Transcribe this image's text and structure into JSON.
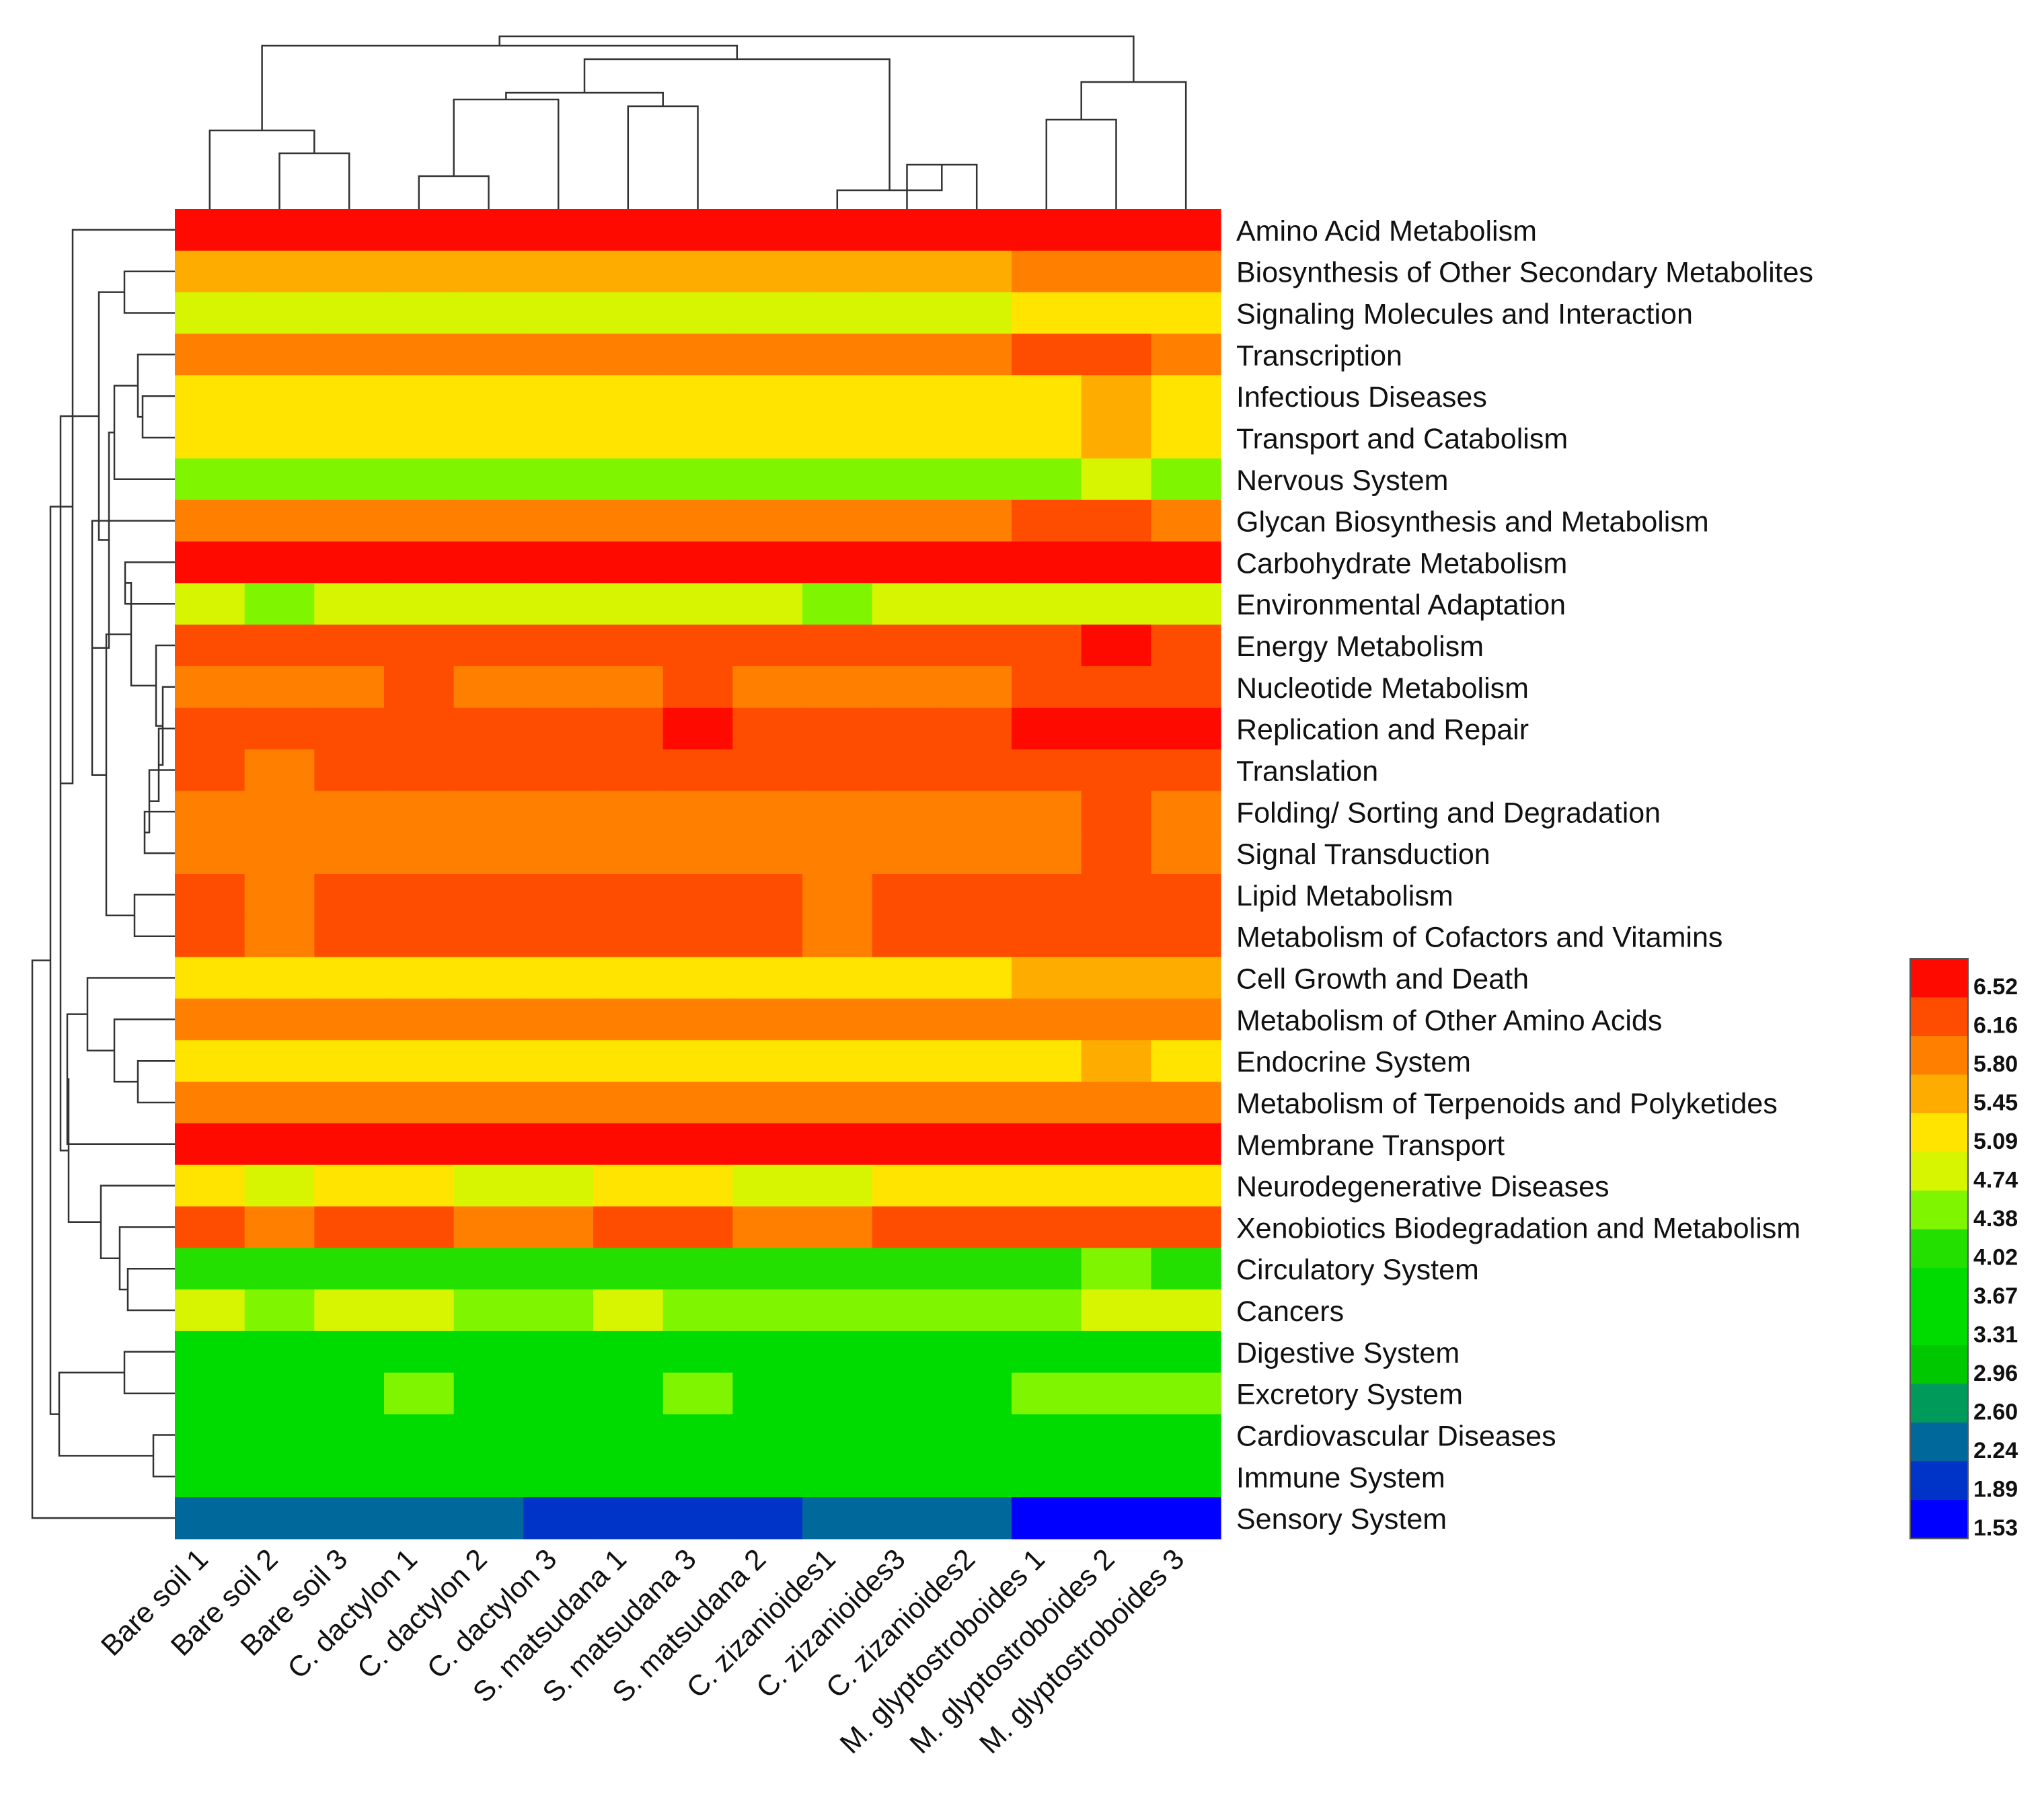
{
  "chart_data": {
    "type": "heatmap",
    "columns": [
      "Bare soil 1",
      "Bare soil 2",
      "Bare soil 3",
      "C. dactylon 1",
      "C. dactylon 2",
      "C. dactylon 3",
      "S. matsudana 1",
      "S. matsudana 3",
      "S. matsudana 2",
      "C. zizanioides1",
      "C. zizanioides3",
      "C. zizanioides2",
      "M. glyptostroboides 1",
      "M. glyptostroboides 2",
      "M. glyptostroboides 3"
    ],
    "rows": [
      "Amino Acid Metabolism",
      "Biosynthesis of Other Secondary Metabolites",
      "Signaling Molecules and Interaction",
      "Transcription",
      "Infectious Diseases",
      "Transport and Catabolism",
      "Nervous System",
      "Glycan Biosynthesis and Metabolism",
      "Carbohydrate Metabolism",
      "Environmental Adaptation",
      "Energy Metabolism",
      "Nucleotide Metabolism",
      "Replication and Repair",
      "Translation",
      "Folding/ Sorting and Degradation",
      "Signal Transduction",
      "Lipid Metabolism",
      "Metabolism of Cofactors and Vitamins",
      "Cell Growth and Death",
      "Metabolism of Other Amino Acids",
      "Endocrine System",
      "Metabolism of Terpenoids and Polyketides",
      "Membrane Transport",
      "Neurodegenerative Diseases",
      "Xenobiotics Biodegradation and Metabolism",
      "Circulatory System",
      "Cancers",
      "Digestive System",
      "Excretory System",
      "Cardiovascular Diseases",
      "Immune System",
      "Sensory System"
    ],
    "values": [
      [
        6.6,
        6.6,
        6.6,
        6.6,
        6.6,
        6.6,
        6.6,
        6.6,
        6.6,
        6.6,
        6.6,
        6.6,
        6.6,
        6.6,
        6.6
      ],
      [
        5.5,
        5.5,
        5.5,
        5.5,
        5.5,
        5.5,
        5.5,
        5.5,
        5.5,
        5.5,
        5.5,
        5.5,
        5.9,
        5.9,
        5.9
      ],
      [
        4.8,
        4.8,
        4.8,
        4.8,
        4.8,
        4.8,
        4.8,
        4.8,
        4.8,
        4.8,
        4.8,
        4.8,
        5.1,
        5.1,
        5.1
      ],
      [
        5.9,
        5.9,
        5.9,
        5.9,
        5.9,
        5.9,
        5.9,
        5.9,
        5.9,
        5.9,
        5.9,
        5.9,
        6.2,
        6.2,
        5.9
      ],
      [
        5.1,
        5.1,
        5.1,
        5.1,
        5.1,
        5.1,
        5.1,
        5.1,
        5.1,
        5.1,
        5.1,
        5.1,
        5.1,
        5.5,
        5.1
      ],
      [
        5.1,
        5.1,
        5.1,
        5.1,
        5.1,
        5.1,
        5.1,
        5.1,
        5.1,
        5.1,
        5.1,
        5.1,
        5.1,
        5.5,
        5.1
      ],
      [
        4.4,
        4.4,
        4.4,
        4.4,
        4.4,
        4.4,
        4.4,
        4.4,
        4.4,
        4.4,
        4.4,
        4.4,
        4.4,
        4.8,
        4.4
      ],
      [
        5.9,
        5.9,
        5.9,
        5.9,
        5.9,
        5.9,
        5.9,
        5.9,
        5.9,
        5.9,
        5.9,
        5.9,
        6.2,
        6.2,
        5.9
      ],
      [
        6.6,
        6.6,
        6.6,
        6.6,
        6.6,
        6.6,
        6.6,
        6.6,
        6.6,
        6.6,
        6.6,
        6.6,
        6.6,
        6.6,
        6.6
      ],
      [
        4.8,
        4.4,
        4.8,
        4.8,
        4.8,
        4.8,
        4.8,
        4.8,
        4.8,
        4.4,
        4.8,
        4.8,
        4.8,
        4.8,
        4.8
      ],
      [
        6.2,
        6.2,
        6.2,
        6.2,
        6.2,
        6.2,
        6.2,
        6.2,
        6.2,
        6.2,
        6.2,
        6.2,
        6.2,
        6.6,
        6.2
      ],
      [
        5.9,
        5.9,
        5.9,
        6.2,
        5.9,
        5.9,
        5.9,
        6.2,
        5.9,
        5.9,
        5.9,
        5.9,
        6.2,
        6.2,
        6.2
      ],
      [
        6.2,
        6.2,
        6.2,
        6.2,
        6.2,
        6.2,
        6.2,
        6.6,
        6.2,
        6.2,
        6.2,
        6.2,
        6.6,
        6.6,
        6.6
      ],
      [
        6.2,
        5.9,
        6.2,
        6.2,
        6.2,
        6.2,
        6.2,
        6.2,
        6.2,
        6.2,
        6.2,
        6.2,
        6.2,
        6.2,
        6.2
      ],
      [
        5.9,
        5.9,
        5.9,
        5.9,
        5.9,
        5.9,
        5.9,
        5.9,
        5.9,
        5.9,
        5.9,
        5.9,
        5.9,
        6.2,
        5.9
      ],
      [
        5.9,
        5.9,
        5.9,
        5.9,
        5.9,
        5.9,
        5.9,
        5.9,
        5.9,
        5.9,
        5.9,
        5.9,
        5.9,
        6.2,
        5.9
      ],
      [
        6.2,
        5.9,
        6.2,
        6.2,
        6.2,
        6.2,
        6.2,
        6.2,
        6.2,
        5.9,
        6.2,
        6.2,
        6.2,
        6.2,
        6.2
      ],
      [
        6.2,
        5.9,
        6.2,
        6.2,
        6.2,
        6.2,
        6.2,
        6.2,
        6.2,
        5.9,
        6.2,
        6.2,
        6.2,
        6.2,
        6.2
      ],
      [
        5.1,
        5.1,
        5.1,
        5.1,
        5.1,
        5.1,
        5.1,
        5.1,
        5.1,
        5.1,
        5.1,
        5.1,
        5.5,
        5.5,
        5.5
      ],
      [
        5.9,
        5.9,
        5.9,
        5.9,
        5.9,
        5.9,
        5.9,
        5.9,
        5.9,
        5.9,
        5.9,
        5.9,
        5.9,
        5.9,
        5.9
      ],
      [
        5.1,
        5.1,
        5.1,
        5.1,
        5.1,
        5.1,
        5.1,
        5.1,
        5.1,
        5.1,
        5.1,
        5.1,
        5.1,
        5.5,
        5.1
      ],
      [
        5.9,
        5.9,
        5.9,
        5.9,
        5.9,
        5.9,
        5.9,
        5.9,
        5.9,
        5.9,
        5.9,
        5.9,
        5.9,
        5.9,
        5.9
      ],
      [
        6.6,
        6.6,
        6.6,
        6.6,
        6.6,
        6.6,
        6.6,
        6.6,
        6.6,
        6.6,
        6.6,
        6.6,
        6.6,
        6.6,
        6.6
      ],
      [
        5.1,
        4.8,
        5.1,
        5.1,
        4.8,
        4.8,
        5.1,
        5.1,
        4.8,
        4.8,
        5.1,
        5.1,
        5.1,
        5.1,
        5.1
      ],
      [
        6.2,
        5.9,
        6.2,
        6.2,
        5.9,
        5.9,
        6.2,
        6.2,
        5.9,
        5.9,
        6.2,
        6.2,
        6.2,
        6.2,
        6.2
      ],
      [
        4.0,
        4.0,
        4.0,
        4.0,
        4.0,
        4.0,
        4.0,
        4.0,
        4.0,
        4.0,
        4.0,
        4.0,
        4.0,
        4.4,
        4.0
      ],
      [
        4.8,
        4.4,
        4.8,
        4.8,
        4.4,
        4.4,
        4.8,
        4.4,
        4.4,
        4.4,
        4.4,
        4.4,
        4.4,
        4.8,
        4.8
      ],
      [
        3.7,
        3.7,
        3.7,
        3.7,
        3.7,
        3.7,
        3.7,
        3.7,
        3.7,
        3.7,
        3.7,
        3.7,
        3.7,
        3.7,
        3.7
      ],
      [
        3.7,
        3.7,
        3.7,
        4.4,
        3.7,
        3.7,
        3.7,
        4.4,
        3.7,
        3.7,
        3.7,
        3.7,
        4.4,
        4.4,
        4.4
      ],
      [
        3.7,
        3.7,
        3.7,
        3.7,
        3.7,
        3.7,
        3.7,
        3.7,
        3.7,
        3.7,
        3.7,
        3.7,
        3.7,
        3.7,
        3.7
      ],
      [
        3.7,
        3.7,
        3.7,
        3.7,
        3.7,
        3.7,
        3.7,
        3.7,
        3.7,
        3.7,
        3.7,
        3.7,
        3.7,
        3.7,
        3.7
      ],
      [
        2.3,
        2.3,
        2.3,
        2.3,
        2.3,
        1.9,
        1.9,
        1.9,
        1.9,
        2.3,
        2.3,
        2.3,
        1.6,
        1.6,
        1.6
      ]
    ],
    "color_scale": {
      "ticks": [
        "6.52",
        "6.16",
        "5.80",
        "5.45",
        "5.09",
        "4.74",
        "4.38",
        "4.02",
        "3.67",
        "3.31",
        "2.96",
        "2.60",
        "2.24",
        "1.89",
        "1.53"
      ],
      "tick_values": [
        6.52,
        6.16,
        5.8,
        5.45,
        5.09,
        4.74,
        4.38,
        4.02,
        3.67,
        3.31,
        2.96,
        2.6,
        2.24,
        1.89,
        1.53
      ],
      "colors": [
        "#ff0a00",
        "#ff4d00",
        "#ff7f00",
        "#ffac00",
        "#ffe400",
        "#d7f500",
        "#80f500",
        "#23e000",
        "#00dc00",
        "#00dc00",
        "#00c800",
        "#009a5a",
        "#00689a",
        "#0033c8",
        "#0000ff"
      ]
    },
    "legend_position": "right",
    "dendrograms": [
      "columns-top",
      "rows-left"
    ],
    "grid": false
  }
}
